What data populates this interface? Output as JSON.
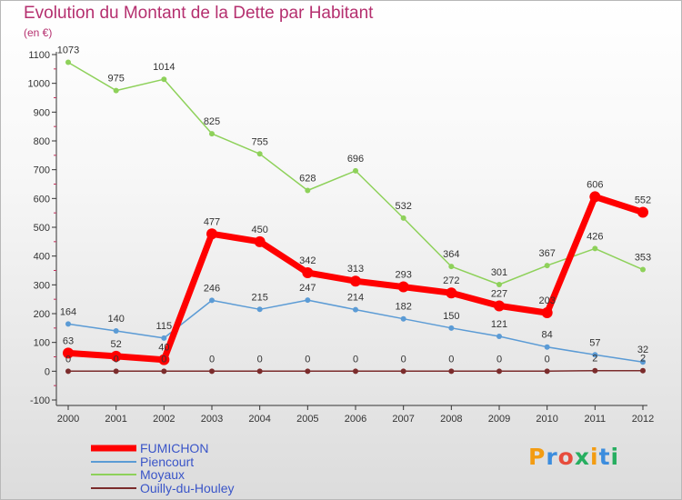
{
  "title": "Evolution du Montant de la Dette par Habitant",
  "unit_label": "(en €)",
  "logo": {
    "text": "Proxiti",
    "colors": [
      "#f39c12",
      "#3c8dde",
      "#e74c3c",
      "#27ae60",
      "#f39c12",
      "#3c8dde",
      "#27ae60"
    ]
  },
  "chart_data": {
    "type": "line",
    "x": [
      2000,
      2001,
      2002,
      2003,
      2004,
      2005,
      2006,
      2007,
      2008,
      2009,
      2010,
      2011,
      2012
    ],
    "ylim": [
      -100,
      1100
    ],
    "yticks": [
      -100,
      0,
      100,
      200,
      300,
      400,
      500,
      600,
      700,
      800,
      900,
      1000,
      1100
    ],
    "grid": false,
    "legend_position": "bottom-left",
    "series": [
      {
        "name": "FUMICHON",
        "color": "#ff0000",
        "values": [
          63,
          52,
          40,
          477,
          450,
          342,
          313,
          293,
          272,
          227,
          203,
          606,
          552
        ],
        "labels": [
          "63",
          "52",
          "40",
          "477",
          "450",
          "342",
          "313",
          "293",
          "272",
          "227",
          "203",
          "606",
          "552"
        ]
      },
      {
        "name": "Piencourt",
        "color": "#5b9bd5",
        "values": [
          164,
          140,
          115,
          246,
          215,
          247,
          214,
          182,
          150,
          121,
          84,
          57,
          32
        ],
        "labels": [
          "164",
          "140",
          "115",
          "246",
          "215",
          "247",
          "214",
          "182",
          "150",
          "121",
          "84",
          "57",
          "32"
        ]
      },
      {
        "name": "Moyaux",
        "color": "#8ed15a",
        "values": [
          1073,
          975,
          1014,
          825,
          755,
          628,
          696,
          532,
          364,
          301,
          367,
          426,
          353
        ],
        "labels": [
          "1073",
          "975",
          "1014",
          "825",
          "755",
          "628",
          "696",
          "532",
          "364",
          "301",
          "367",
          "426",
          "353"
        ]
      },
      {
        "name": "Ouilly-du-Houley",
        "color": "#7b2c2c",
        "values": [
          0,
          0,
          0,
          0,
          0,
          0,
          0,
          0,
          0,
          0,
          0,
          2,
          2
        ],
        "labels": [
          "0",
          "0",
          "0",
          "0",
          "0",
          "0",
          "0",
          "0",
          "0",
          "0",
          "0",
          "2",
          "2"
        ]
      }
    ]
  }
}
